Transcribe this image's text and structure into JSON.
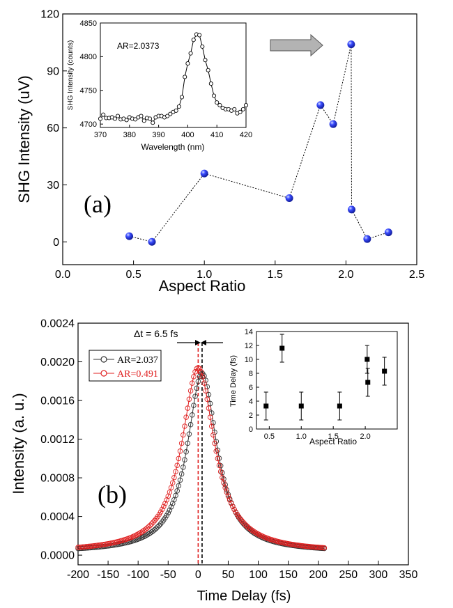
{
  "chart_data": [
    {
      "id": "a",
      "type": "scatter",
      "panel_label": "(a)",
      "xlabel": "Aspect Ratio",
      "ylabel": "SHG Intensity (uV)",
      "xlim": [
        0.0,
        2.5
      ],
      "ylim": [
        -12,
        120
      ],
      "xticks": [
        0.0,
        0.5,
        1.0,
        1.5,
        2.0,
        2.5
      ],
      "xtick_labels": [
        "0.0",
        "0.5",
        "1.0",
        "1.5",
        "2.0",
        "2.5"
      ],
      "yticks": [
        0,
        30,
        60,
        90,
        120
      ],
      "ytick_labels": [
        "0",
        "30",
        "60",
        "90",
        "120"
      ],
      "marker_color": "#1c2fe0",
      "series": [
        {
          "x": [
            0.47,
            0.63,
            1.0,
            1.6,
            1.82,
            1.91,
            2.037,
            2.04,
            2.15,
            2.3
          ],
          "y": [
            3,
            0,
            36,
            23,
            72,
            62,
            104,
            17,
            1.5,
            5
          ]
        }
      ],
      "inset": {
        "type": "line",
        "text": "AR=2.0373",
        "xlabel": "Wavelength (nm)",
        "ylabel": "SHG Intensity (counts)",
        "xlim": [
          370,
          420
        ],
        "ylim": [
          4695,
          4850
        ],
        "xticks": [
          370,
          380,
          390,
          400,
          410,
          420
        ],
        "xtick_labels": [
          "370",
          "380",
          "390",
          "400",
          "410",
          "420"
        ],
        "yticks": [
          4700,
          4750,
          4800,
          4850
        ],
        "ytick_labels": [
          "4700",
          "4750",
          "4800",
          "4850"
        ],
        "x": [
          370,
          371,
          372,
          373,
          374,
          375,
          376,
          377,
          378,
          379,
          380,
          381,
          382,
          383,
          384,
          385,
          386,
          387,
          388,
          389,
          390,
          391,
          392,
          393,
          394,
          395,
          396,
          397,
          398,
          399,
          400,
          401,
          402,
          403,
          404,
          405,
          406,
          407,
          408,
          409,
          410,
          411,
          412,
          413,
          414,
          415,
          416,
          417,
          418,
          419,
          420
        ],
        "y": [
          4708,
          4714,
          4709,
          4709,
          4710,
          4708,
          4712,
          4707,
          4708,
          4706,
          4710,
          4708,
          4707,
          4710,
          4712,
          4705,
          4709,
          4708,
          4702,
          4710,
          4712,
          4712,
          4710,
          4712,
          4715,
          4718,
          4720,
          4726,
          4740,
          4770,
          4790,
          4805,
          4825,
          4833,
          4832,
          4815,
          4795,
          4780,
          4760,
          4742,
          4732,
          4728,
          4724,
          4722,
          4722,
          4720,
          4722,
          4716,
          4718,
          4722,
          4728
        ]
      },
      "arrow_color": "#b3b3b3"
    },
    {
      "id": "b",
      "type": "line",
      "panel_label": "(b)",
      "xlabel": "Time Delay (fs)",
      "ylabel": "Intensity (a. u.)",
      "xlim": [
        -200,
        350
      ],
      "ylim": [
        -0.0001,
        0.0024
      ],
      "xticks": [
        -200,
        -150,
        -100,
        -50,
        0,
        50,
        100,
        150,
        200,
        250,
        300,
        350
      ],
      "xtick_labels": [
        "-200",
        "-150",
        "-100",
        "-50",
        "0",
        "50",
        "100",
        "150",
        "200",
        "250",
        "300",
        "350"
      ],
      "yticks": [
        0,
        0.0004,
        0.0008,
        0.0012,
        0.0016,
        0.002,
        0.0024
      ],
      "ytick_labels": [
        "0.0000",
        "0.0004",
        "0.0008",
        "0.0012",
        "0.0016",
        "0.0020",
        "0.0024"
      ],
      "annotation": "Δt = 6.5 fs",
      "series": [
        {
          "name": "AR=2.037",
          "color": "#333333",
          "center": 6.5,
          "peak": 0.00188,
          "base": 3e-05,
          "width": 60
        },
        {
          "name": "AR=0.491",
          "color": "#e02020",
          "center": 0,
          "peak": 0.00194,
          "base": 3e-05,
          "width": 66
        }
      ],
      "x_range": [
        -200,
        210
      ],
      "dashed_lines": [
        {
          "x": 0,
          "color": "#e02020"
        },
        {
          "x": 6.5,
          "color": "#000000"
        }
      ],
      "inset": {
        "type": "scatter",
        "xlabel": "Aspect Ratio",
        "ylabel": "Time Delay (fs)",
        "xlim": [
          0.3,
          2.5
        ],
        "ylim": [
          0,
          14
        ],
        "xticks": [
          0.5,
          1.0,
          1.5,
          2.0
        ],
        "xtick_labels": [
          "0.5",
          "1.0",
          "1.5",
          "2.0"
        ],
        "yticks": [
          0,
          2,
          4,
          6,
          8,
          10,
          12,
          14
        ],
        "ytick_labels": [
          "0",
          "2",
          "4",
          "6",
          "8",
          "10",
          "12",
          "14"
        ],
        "x": [
          0.45,
          0.7,
          1.0,
          1.6,
          2.03,
          2.04,
          2.3
        ],
        "y": [
          3.3,
          11.6,
          3.3,
          3.3,
          10.0,
          6.7,
          8.3
        ],
        "err": [
          2.0,
          2.0,
          2.0,
          2.0,
          2.0,
          2.0,
          2.0
        ]
      }
    }
  ]
}
